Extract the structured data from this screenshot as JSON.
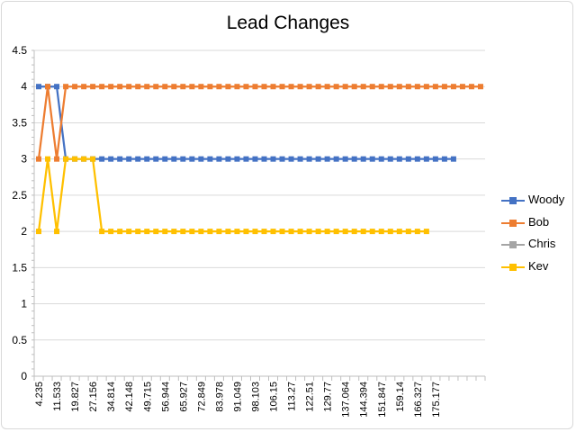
{
  "chart_data": {
    "type": "line",
    "title": "Lead Changes",
    "xlabel": "",
    "ylabel": "",
    "ylim": [
      0,
      4.5
    ],
    "y_ticks": [
      "0",
      "0.5",
      "1",
      "1.5",
      "2",
      "2.5",
      "3",
      "3.5",
      "4",
      "4.5"
    ],
    "x_tick_labels": [
      "4.235",
      "11.533",
      "19.827",
      "27.156",
      "34.814",
      "42.148",
      "49.715",
      "56.944",
      "65.927",
      "72.849",
      "83.978",
      "91.049",
      "98.103",
      "106.15",
      "113.27",
      "122.51",
      "129.77",
      "137.064",
      "144.394",
      "151.847",
      "159.14",
      "166.327",
      "175.177"
    ],
    "x_category_count": 50,
    "grid": true,
    "legend_position": "right",
    "series": [
      {
        "name": "Woody",
        "color": "#4472C4",
        "values": [
          4,
          4,
          4,
          3,
          3,
          3,
          3,
          3,
          3,
          3,
          3,
          3,
          3,
          3,
          3,
          3,
          3,
          3,
          3,
          3,
          3,
          3,
          3,
          3,
          3,
          3,
          3,
          3,
          3,
          3,
          3,
          3,
          3,
          3,
          3,
          3,
          3,
          3,
          3,
          3,
          3,
          3,
          3,
          3,
          3,
          3,
          3
        ]
      },
      {
        "name": "Bob",
        "color": "#ED7D31",
        "values": [
          3,
          4,
          3,
          4,
          4,
          4,
          4,
          4,
          4,
          4,
          4,
          4,
          4,
          4,
          4,
          4,
          4,
          4,
          4,
          4,
          4,
          4,
          4,
          4,
          4,
          4,
          4,
          4,
          4,
          4,
          4,
          4,
          4,
          4,
          4,
          4,
          4,
          4,
          4,
          4,
          4,
          4,
          4,
          4,
          4,
          4,
          4,
          4,
          4,
          4
        ]
      },
      {
        "name": "Chris",
        "color": "#A5A5A5",
        "values": []
      },
      {
        "name": "Kev",
        "color": "#FFC000",
        "values": [
          2,
          3,
          2,
          3,
          3,
          3,
          3,
          2,
          2,
          2,
          2,
          2,
          2,
          2,
          2,
          2,
          2,
          2,
          2,
          2,
          2,
          2,
          2,
          2,
          2,
          2,
          2,
          2,
          2,
          2,
          2,
          2,
          2,
          2,
          2,
          2,
          2,
          2,
          2,
          2,
          2,
          2,
          2,
          2
        ]
      }
    ]
  }
}
